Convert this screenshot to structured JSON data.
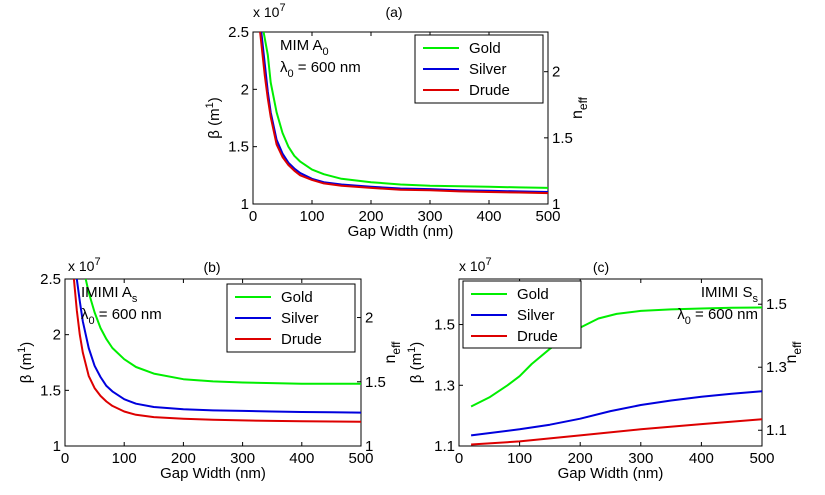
{
  "chart_data": [
    {
      "type": "line",
      "panel_label": "(a)",
      "multiplier_label": "x 10",
      "multiplier_exp": "7",
      "annotation_line1": "MIM A",
      "annotation_line1_sub": "0",
      "annotation_line2": "λ",
      "annotation_line2_sub": "0",
      "annotation_line2_rest": " = 600 nm",
      "xlabel": "Gap Width (nm)",
      "ylabel": "β (m",
      "ylabel_sup": "1",
      "ylabel_close": ")",
      "y2label": "n",
      "y2label_sub": "eff",
      "xlim": [
        0,
        500
      ],
      "ylim": [
        1,
        2.5
      ],
      "y2lim": [
        1,
        2.3
      ],
      "xticks": [
        "0",
        "100",
        "200",
        "300",
        "400",
        "500"
      ],
      "yticks": [
        "1",
        "1.5",
        "2",
        "2.5"
      ],
      "y2ticks": [
        "1",
        "1.5",
        "2"
      ],
      "legend": [
        "Gold",
        "Silver",
        "Drude"
      ],
      "colors": [
        "#00ee00",
        "#0000dd",
        "#dd0000"
      ],
      "series": [
        {
          "name": "Gold",
          "x": [
            18,
            25,
            30,
            40,
            50,
            60,
            70,
            80,
            100,
            120,
            150,
            200,
            250,
            300,
            350,
            400,
            450,
            500
          ],
          "y": [
            2.5,
            2.3,
            2.06,
            1.8,
            1.62,
            1.5,
            1.42,
            1.37,
            1.3,
            1.26,
            1.22,
            1.19,
            1.17,
            1.16,
            1.155,
            1.15,
            1.145,
            1.14
          ]
        },
        {
          "name": "Silver",
          "x": [
            14,
            20,
            25,
            30,
            40,
            50,
            60,
            70,
            80,
            100,
            120,
            150,
            200,
            250,
            300,
            350,
            400,
            450,
            500
          ],
          "y": [
            2.5,
            2.22,
            1.98,
            1.8,
            1.56,
            1.44,
            1.36,
            1.31,
            1.27,
            1.22,
            1.19,
            1.17,
            1.15,
            1.135,
            1.13,
            1.12,
            1.115,
            1.11,
            1.105
          ]
        },
        {
          "name": "Drude",
          "x": [
            12,
            20,
            25,
            30,
            40,
            50,
            60,
            70,
            80,
            100,
            120,
            150,
            200,
            250,
            300,
            350,
            400,
            450,
            500
          ],
          "y": [
            2.5,
            2.12,
            1.92,
            1.76,
            1.52,
            1.41,
            1.34,
            1.29,
            1.25,
            1.21,
            1.18,
            1.16,
            1.14,
            1.125,
            1.12,
            1.11,
            1.105,
            1.1,
            1.095
          ]
        }
      ]
    },
    {
      "type": "line",
      "panel_label": "(b)",
      "multiplier_label": "x 10",
      "multiplier_exp": "7",
      "annotation_line1": "IMIMI A",
      "annotation_line1_sub": "s",
      "annotation_line2": "λ",
      "annotation_line2_sub": "0",
      "annotation_line2_rest": " = 600 nm",
      "xlabel": "Gap Width (nm)",
      "ylabel": "β (m",
      "ylabel_sup": "1",
      "ylabel_close": ")",
      "y2label": "n",
      "y2label_sub": "eff",
      "xlim": [
        0,
        500
      ],
      "ylim": [
        1,
        2.5
      ],
      "y2lim": [
        1,
        2.3
      ],
      "xticks": [
        "0",
        "100",
        "200",
        "300",
        "400",
        "500"
      ],
      "yticks": [
        "1",
        "1.5",
        "2",
        "2.5"
      ],
      "y2ticks": [
        "1",
        "1.5",
        "2"
      ],
      "legend": [
        "Gold",
        "Silver",
        "Drude"
      ],
      "colors": [
        "#00ee00",
        "#0000dd",
        "#dd0000"
      ],
      "series": [
        {
          "name": "Gold",
          "x": [
            35,
            40,
            50,
            60,
            70,
            80,
            100,
            120,
            150,
            200,
            250,
            300,
            350,
            400,
            450,
            500
          ],
          "y": [
            2.5,
            2.38,
            2.2,
            2.06,
            1.96,
            1.88,
            1.78,
            1.71,
            1.65,
            1.6,
            1.58,
            1.57,
            1.565,
            1.56,
            1.56,
            1.56
          ]
        },
        {
          "name": "Silver",
          "x": [
            20,
            25,
            30,
            40,
            50,
            60,
            70,
            80,
            100,
            120,
            150,
            200,
            250,
            300,
            350,
            400,
            450,
            500
          ],
          "y": [
            2.5,
            2.3,
            2.12,
            1.88,
            1.72,
            1.62,
            1.54,
            1.49,
            1.42,
            1.38,
            1.35,
            1.33,
            1.32,
            1.315,
            1.31,
            1.305,
            1.303,
            1.3
          ]
        },
        {
          "name": "Drude",
          "x": [
            15,
            20,
            25,
            30,
            40,
            50,
            60,
            70,
            80,
            100,
            120,
            150,
            200,
            250,
            300,
            350,
            400,
            450,
            500
          ],
          "y": [
            2.5,
            2.22,
            2.0,
            1.84,
            1.63,
            1.52,
            1.45,
            1.4,
            1.36,
            1.31,
            1.28,
            1.26,
            1.245,
            1.235,
            1.23,
            1.225,
            1.222,
            1.22,
            1.218
          ]
        }
      ]
    },
    {
      "type": "line",
      "panel_label": "(c)",
      "multiplier_label": "x 10",
      "multiplier_exp": "7",
      "annotation_line1": "IMIMI S",
      "annotation_line1_sub": "s",
      "annotation_line2": "λ",
      "annotation_line2_sub": "0",
      "annotation_line2_rest": " = 600 nm",
      "xlabel": "Gap Width (nm)",
      "ylabel": "β (m",
      "ylabel_sup": "1",
      "ylabel_close": ")",
      "y2label": "n",
      "y2label_sub": "eff",
      "xlim": [
        0,
        500
      ],
      "ylim": [
        1.1,
        1.65
      ],
      "y2lim": [
        1.05,
        1.58
      ],
      "xticks": [
        "0",
        "100",
        "200",
        "300",
        "400",
        "500"
      ],
      "yticks": [
        "1.1",
        "1.3",
        "1.5"
      ],
      "y2ticks": [
        "1.1",
        "1.3",
        "1.5"
      ],
      "legend": [
        "Gold",
        "Silver",
        "Drude"
      ],
      "colors": [
        "#00ee00",
        "#0000dd",
        "#dd0000"
      ],
      "series": [
        {
          "name": "Gold",
          "x": [
            20,
            50,
            80,
            100,
            120,
            150,
            180,
            200,
            230,
            260,
            300,
            350,
            400,
            450,
            500
          ],
          "y": [
            1.23,
            1.26,
            1.3,
            1.33,
            1.37,
            1.42,
            1.46,
            1.49,
            1.52,
            1.535,
            1.545,
            1.55,
            1.553,
            1.555,
            1.556
          ]
        },
        {
          "name": "Silver",
          "x": [
            20,
            100,
            150,
            200,
            250,
            300,
            350,
            400,
            450,
            500
          ],
          "y": [
            1.135,
            1.155,
            1.17,
            1.19,
            1.215,
            1.235,
            1.25,
            1.262,
            1.272,
            1.28
          ]
        },
        {
          "name": "Drude",
          "x": [
            20,
            100,
            200,
            300,
            400,
            500
          ],
          "y": [
            1.105,
            1.115,
            1.135,
            1.155,
            1.172,
            1.188
          ]
        }
      ]
    }
  ]
}
